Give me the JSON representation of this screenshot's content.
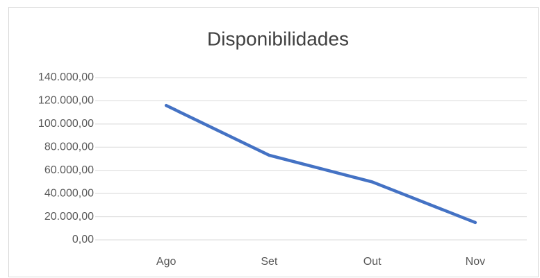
{
  "chart_data": {
    "type": "line",
    "title": "Disponibilidades",
    "categories": [
      "Ago",
      "Set",
      "Out",
      "Nov"
    ],
    "series": [
      {
        "name": "Disponibilidades",
        "color": "#4472c4",
        "values": [
          116000,
          73000,
          50000,
          15000
        ]
      }
    ],
    "ylim": [
      0,
      140000
    ],
    "yticks": [
      {
        "value": 0,
        "label": "0,00"
      },
      {
        "value": 20000,
        "label": "20.000,00"
      },
      {
        "value": 40000,
        "label": "40.000,00"
      },
      {
        "value": 60000,
        "label": "60.000,00"
      },
      {
        "value": 80000,
        "label": "80.000,00"
      },
      {
        "value": 100000,
        "label": "100.000,00"
      },
      {
        "value": 120000,
        "label": "120.000,00"
      },
      {
        "value": 140000,
        "label": "140.000,00"
      }
    ],
    "grid": true
  }
}
